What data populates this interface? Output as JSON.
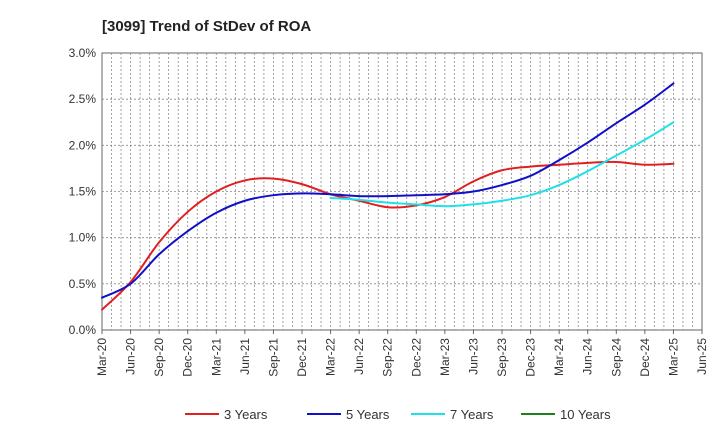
{
  "chart_data": {
    "type": "line",
    "title": "[3099]  Trend of StDev of ROA",
    "xlabel": "",
    "ylabel": "",
    "x": [
      "Mar-20",
      "Jun-20",
      "Sep-20",
      "Dec-20",
      "Mar-21",
      "Jun-21",
      "Sep-21",
      "Dec-21",
      "Mar-22",
      "Jun-22",
      "Sep-22",
      "Dec-22",
      "Mar-23",
      "Jun-23",
      "Sep-23",
      "Dec-23",
      "Mar-24",
      "Jun-24",
      "Sep-24",
      "Dec-24",
      "Mar-25",
      "Jun-25"
    ],
    "y_ticks": [
      "0.0%",
      "0.5%",
      "1.0%",
      "1.5%",
      "2.0%",
      "2.5%",
      "3.0%"
    ],
    "ylim": [
      0,
      3.0
    ],
    "grid": true,
    "legend_position": "bottom",
    "series": [
      {
        "name": "3 Years",
        "color": "#e02020",
        "values": [
          0.22,
          0.52,
          0.95,
          1.28,
          1.5,
          1.62,
          1.64,
          1.58,
          1.47,
          1.4,
          1.33,
          1.35,
          1.44,
          1.61,
          1.73,
          1.77,
          1.79,
          1.81,
          1.82,
          1.79,
          1.8,
          null
        ]
      },
      {
        "name": "5 Years",
        "color": "#1010c8",
        "values": [
          0.35,
          0.5,
          0.82,
          1.07,
          1.27,
          1.4,
          1.46,
          1.48,
          1.47,
          1.45,
          1.45,
          1.46,
          1.47,
          1.5,
          1.57,
          1.67,
          1.84,
          2.03,
          2.24,
          2.44,
          2.67,
          null
        ]
      },
      {
        "name": "7 Years",
        "color": "#20e0e8",
        "values": [
          null,
          null,
          null,
          null,
          null,
          null,
          null,
          null,
          1.43,
          1.41,
          1.38,
          1.36,
          1.34,
          1.36,
          1.4,
          1.46,
          1.57,
          1.72,
          1.89,
          2.06,
          2.25,
          null
        ]
      },
      {
        "name": "10 Years",
        "color": "#208020",
        "values": [
          null,
          null,
          null,
          null,
          null,
          null,
          null,
          null,
          null,
          null,
          null,
          null,
          null,
          null,
          null,
          null,
          null,
          null,
          null,
          null,
          null,
          null
        ]
      }
    ]
  }
}
